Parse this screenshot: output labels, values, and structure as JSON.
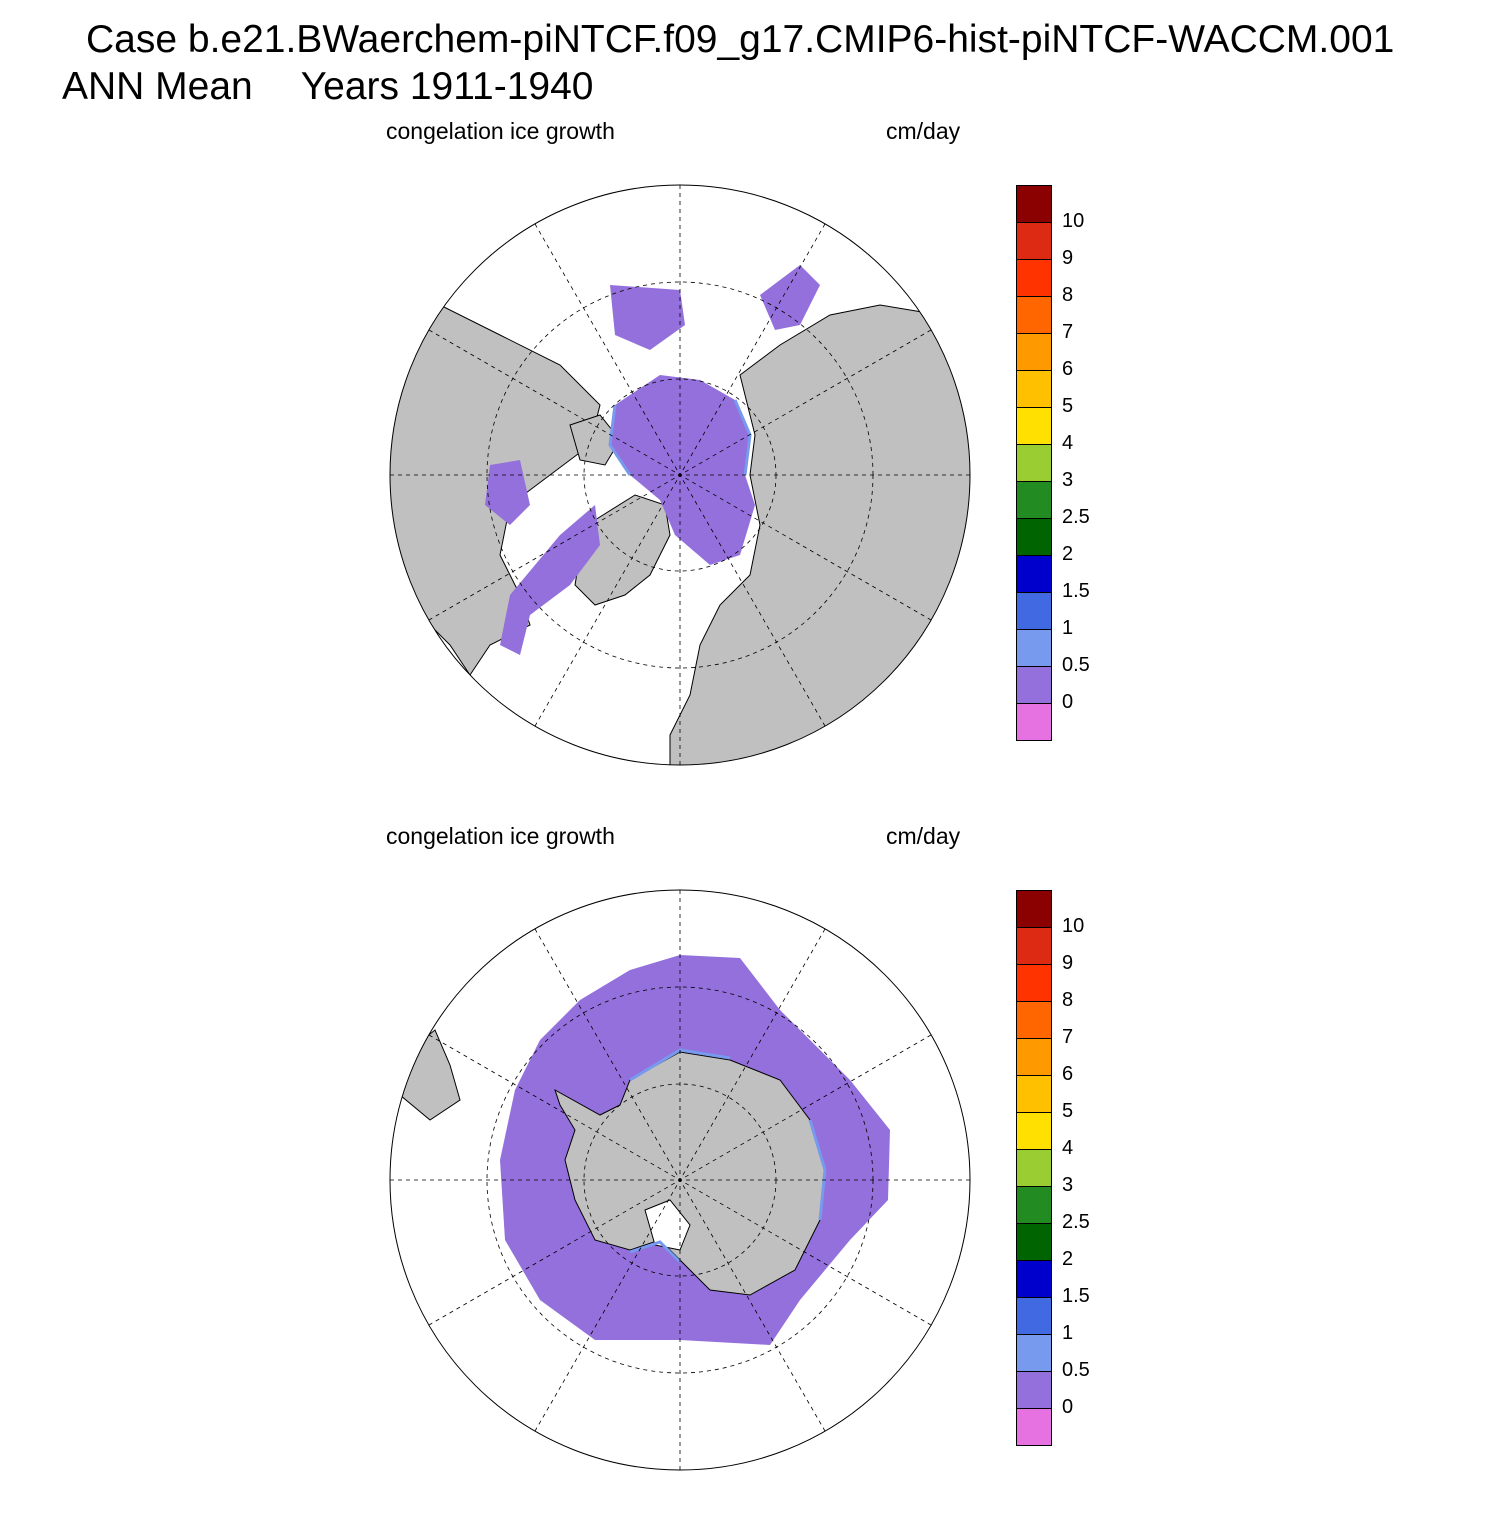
{
  "header": {
    "line1": "Case b.e21.BWaerchem-piNTCF.f09_g17.CMIP6-hist-piNTCF-WACCM.001",
    "season": "ANN Mean",
    "years": "Years 1911-1940"
  },
  "panels": [
    {
      "hemisphere": "north",
      "left_label": "congelation ice growth",
      "right_label": "cm/day"
    },
    {
      "hemisphere": "south",
      "left_label": "congelation ice growth",
      "right_label": "cm/day"
    }
  ],
  "colorbar": {
    "colors": [
      "#8b0000",
      "#dd2a12",
      "#ff3300",
      "#ff6600",
      "#ff9900",
      "#ffc000",
      "#ffe000",
      "#9acd32",
      "#228b22",
      "#006400",
      "#0000cd",
      "#4169e1",
      "#7799ee",
      "#9370db",
      "#e572e0"
    ],
    "labels": [
      "10",
      "9",
      "8",
      "7",
      "6",
      "5",
      "4",
      "3",
      "2.5",
      "2",
      "1.5",
      "1",
      "0.5",
      "0"
    ]
  },
  "colors": {
    "land": "#c0c0c0",
    "ice_growth_low": "#9370db",
    "ice_growth_edge": "#7799ee"
  }
}
